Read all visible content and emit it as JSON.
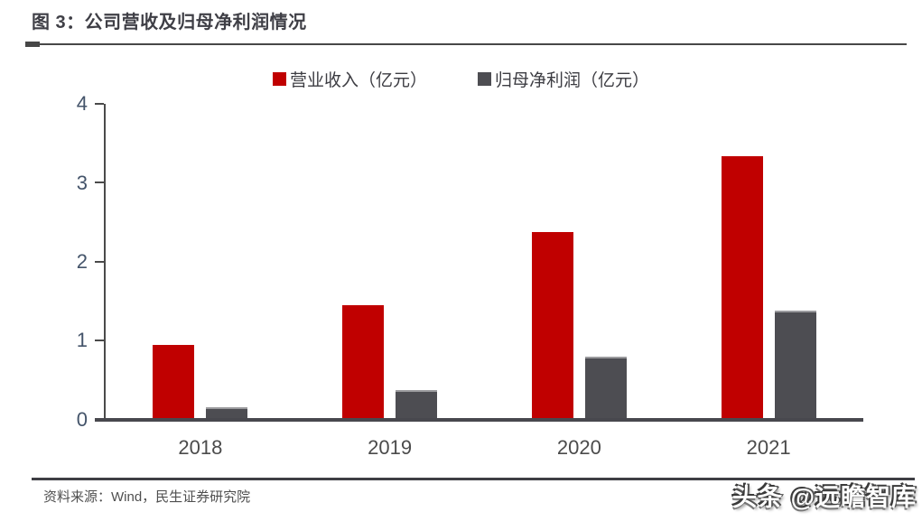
{
  "header": {
    "title": "图 3：公司营收及归母净利润情况"
  },
  "chart_data": {
    "type": "bar",
    "title": "图 3：公司营收及归母净利润情况",
    "categories": [
      "2018",
      "2019",
      "2020",
      "2021"
    ],
    "series": [
      {
        "name": "营业收入（亿元）",
        "color": "#c00000",
        "values": [
          0.92,
          1.43,
          2.35,
          3.31
        ]
      },
      {
        "name": "归母净利润（亿元）",
        "color": "#4d4d52",
        "values": [
          0.14,
          0.35,
          0.78,
          1.36
        ]
      }
    ],
    "ylim": [
      0,
      4
    ],
    "yticks": [
      0,
      1,
      2,
      3,
      4
    ],
    "grid": false,
    "legend_position": "top"
  },
  "footer": {
    "source": "资料来源：Wind，民生证券研究院"
  },
  "watermark": {
    "text": "头条 @远瞻智库"
  },
  "colors": {
    "revenue_bar": "#c00000",
    "net_profit_bar": "#4d4d52",
    "axis": "#4a4a4a",
    "title_text": "#3f3f46",
    "y_label_text": "#44546a"
  }
}
